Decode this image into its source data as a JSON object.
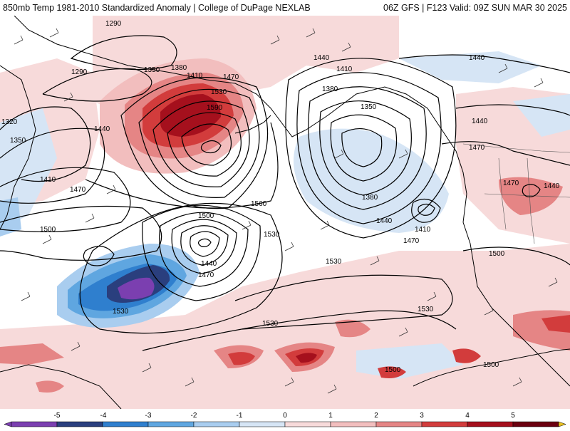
{
  "header": {
    "left_title": "850mb Temp 1981-2010 Standardized Anomaly | College of DuPage NEXLAB",
    "right_title": "06Z GFS | F123 Valid: 09Z SUN MAR 30 2025"
  },
  "map": {
    "field": "850mb temperature standardized anomaly",
    "overlay": "geopotential height contours",
    "colors": {
      "neg5": "#7b3fb0",
      "neg4": "#2a3f7e",
      "neg3": "#2f7fce",
      "neg2": "#5fa6e0",
      "neg1": "#a9cdef",
      "neg05": "#d6e5f5",
      "pos05": "#f7dada",
      "pos1": "#f2bebe",
      "pos2": "#e58585",
      "pos3": "#d23c3c",
      "pos4": "#a5101d",
      "pos5": "#6b0010",
      "above5": "#e8c020"
    },
    "contour_labels": [
      {
        "id": "c1290a",
        "text": "1290"
      },
      {
        "id": "c1290b",
        "text": "1290"
      },
      {
        "id": "c1350a",
        "text": "1350"
      },
      {
        "id": "c1380a",
        "text": "1380"
      },
      {
        "id": "c1410a",
        "text": "1410"
      },
      {
        "id": "c1470a",
        "text": "1470"
      },
      {
        "id": "c1530a",
        "text": "1530"
      },
      {
        "id": "c1590a",
        "text": "1590"
      },
      {
        "id": "c1320a",
        "text": "1320"
      },
      {
        "id": "c1350b",
        "text": "1350"
      },
      {
        "id": "c1440a",
        "text": "1440"
      },
      {
        "id": "c1410b",
        "text": "1410"
      },
      {
        "id": "c1470b",
        "text": "1470"
      },
      {
        "id": "c1500a",
        "text": "1500"
      },
      {
        "id": "c1560a",
        "text": "1560"
      },
      {
        "id": "c1500b",
        "text": "1500"
      },
      {
        "id": "c1530b",
        "text": "1530"
      },
      {
        "id": "c1440b",
        "text": "1440"
      },
      {
        "id": "c1470c",
        "text": "1470"
      },
      {
        "id": "c1530c",
        "text": "1530"
      },
      {
        "id": "c1440c",
        "text": "1440"
      },
      {
        "id": "c1410c",
        "text": "1410"
      },
      {
        "id": "c1380b",
        "text": "1380"
      },
      {
        "id": "c1350c",
        "text": "1350"
      },
      {
        "id": "c1380c",
        "text": "1380"
      },
      {
        "id": "c1440d",
        "text": "1440"
      },
      {
        "id": "c1410d",
        "text": "1410"
      },
      {
        "id": "c1470d",
        "text": "1470"
      },
      {
        "id": "c1440e",
        "text": "1440"
      },
      {
        "id": "c1440f",
        "text": "1440"
      },
      {
        "id": "c1470e",
        "text": "1470"
      },
      {
        "id": "c1470f",
        "text": "1470"
      },
      {
        "id": "c1440g",
        "text": "1440"
      },
      {
        "id": "c1500c",
        "text": "1500"
      },
      {
        "id": "c1530d",
        "text": "1530"
      },
      {
        "id": "c1530e",
        "text": "1530"
      },
      {
        "id": "c1530f",
        "text": "1530"
      },
      {
        "id": "c1500d",
        "text": "1500"
      },
      {
        "id": "c1500e",
        "text": "1500"
      }
    ]
  },
  "colorbar": {
    "tick_labels": [
      "-5",
      "-4",
      "-3",
      "-2",
      "-1",
      "0",
      "1",
      "2",
      "3",
      "4",
      "5"
    ]
  }
}
